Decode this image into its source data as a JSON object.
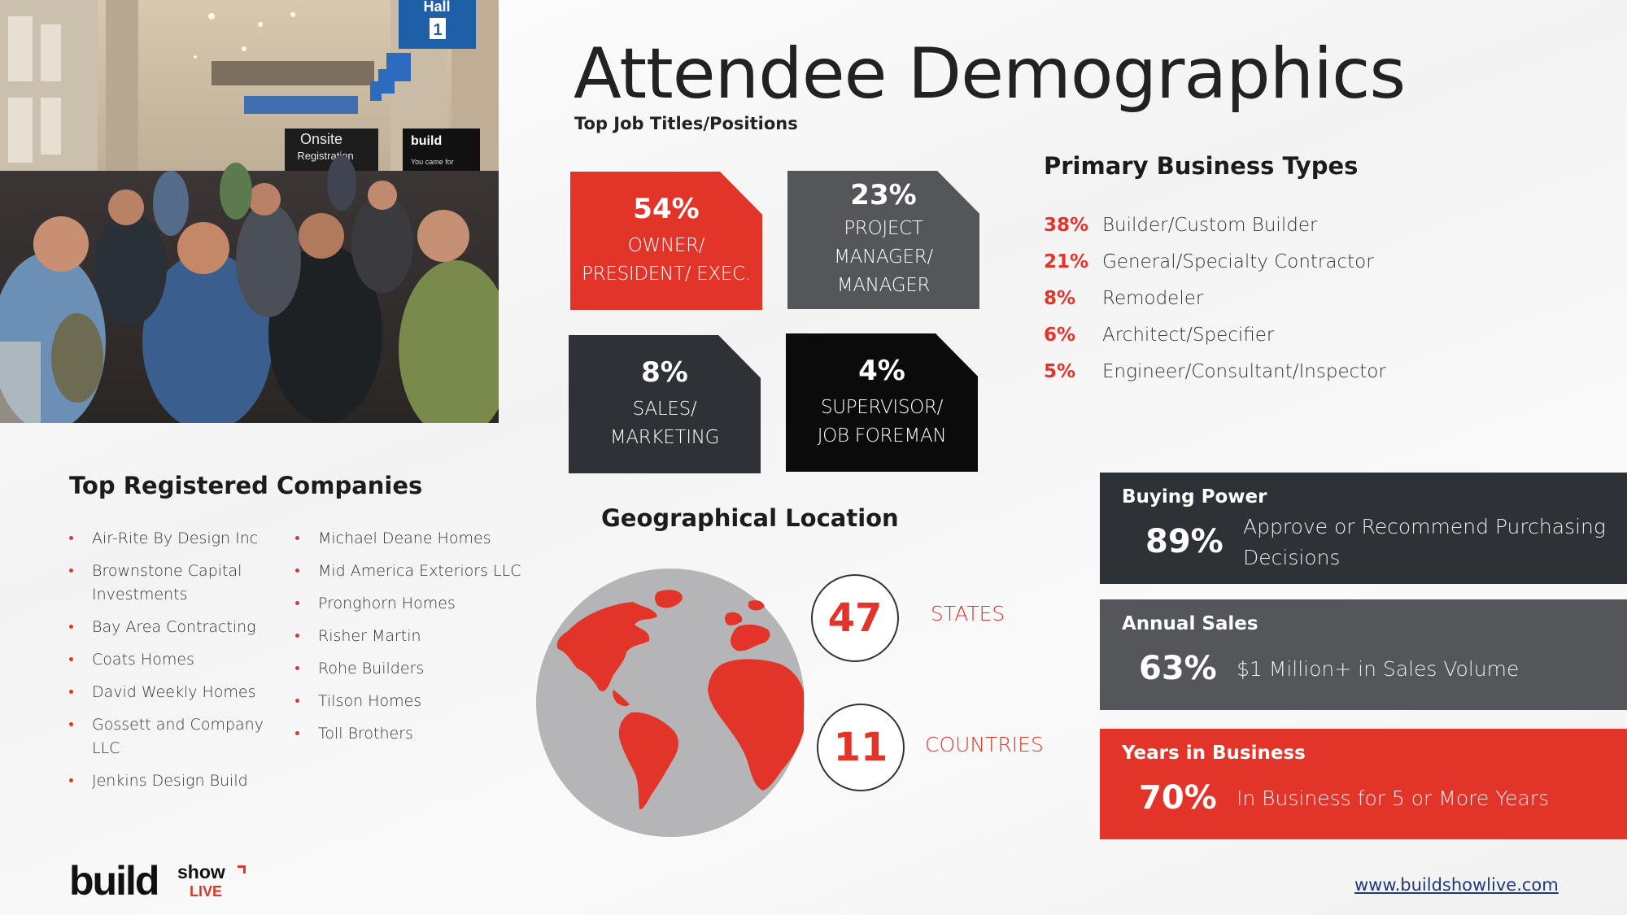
{
  "title": "Attendee Demographics",
  "subtitle": "Top Job Titles/Positions",
  "photo": {
    "sign_hall": "Hall",
    "sign_hall_number": "1",
    "sign_onsite": "Onsite",
    "sign_registration": "Registration",
    "banner_build": "build",
    "banner_line": "You came for"
  },
  "job_titles": [
    {
      "pct": "54%",
      "label_lines": [
        "OWNER/",
        "PRESIDENT/ EXEC."
      ],
      "color": "#e3342a"
    },
    {
      "pct": "23%",
      "label_lines": [
        "PROJECT",
        "MANAGER/",
        "MANAGER"
      ],
      "color": "#545659"
    },
    {
      "pct": "8%",
      "label_lines": [
        "SALES/",
        "MARKETING"
      ],
      "color": "#2e3136"
    },
    {
      "pct": "4%",
      "label_lines": [
        "SUPERVISOR/",
        "JOB FOREMAN"
      ],
      "color": "#0b0b0b"
    }
  ],
  "primary_business_types": {
    "title": "Primary Business Types",
    "items": [
      {
        "pct": "38%",
        "label": "Builder/Custom Builder"
      },
      {
        "pct": "21%",
        "label": "General/Specialty Contractor"
      },
      {
        "pct": "8%",
        "label": "Remodeler"
      },
      {
        "pct": "6%",
        "label": "Architect/Specifier"
      },
      {
        "pct": "5%",
        "label": "Engineer/Consultant/Inspector"
      }
    ]
  },
  "top_companies": {
    "title": "Top Registered Companies",
    "col1": [
      "Air-Rite By Design Inc",
      "Brownstone Capital Investments",
      "Bay Area Contracting",
      "Coats Homes",
      "David Weekly Homes",
      "Gossett and Company LLC",
      "Jenkins Design Build"
    ],
    "col2": [
      "Michael Deane Homes",
      "Mid America Exteriors LLC",
      "Pronghorn Homes",
      "Risher Martin",
      "Rohe Builders",
      "Tilson Homes",
      "Toll Brothers"
    ]
  },
  "geo": {
    "title": "Geographical Location",
    "states_value": "47",
    "states_label": "STATES",
    "countries_value": "11",
    "countries_label": "COUNTRIES"
  },
  "stats": {
    "buying_power": {
      "heading": "Buying Power",
      "value": "89%",
      "desc_line1": "Approve or Recommend Purchasing",
      "desc_line2": "Decisions"
    },
    "annual_sales": {
      "heading": "Annual Sales",
      "value": "63%",
      "desc": "$1 Million+ in Sales Volume"
    },
    "years_in_business": {
      "heading": "Years in Business",
      "value": "70%",
      "desc": "In Business for 5 or More Years"
    }
  },
  "footer": {
    "logo_build": "build",
    "logo_show": "show",
    "logo_live": "LIVE",
    "url": "www.buildshowlive.com"
  },
  "colors": {
    "accent_red": "#e3342a",
    "gray": "#545659",
    "dark": "#2e3136",
    "black": "#0b0b0b",
    "link": "#1f3a7a"
  }
}
